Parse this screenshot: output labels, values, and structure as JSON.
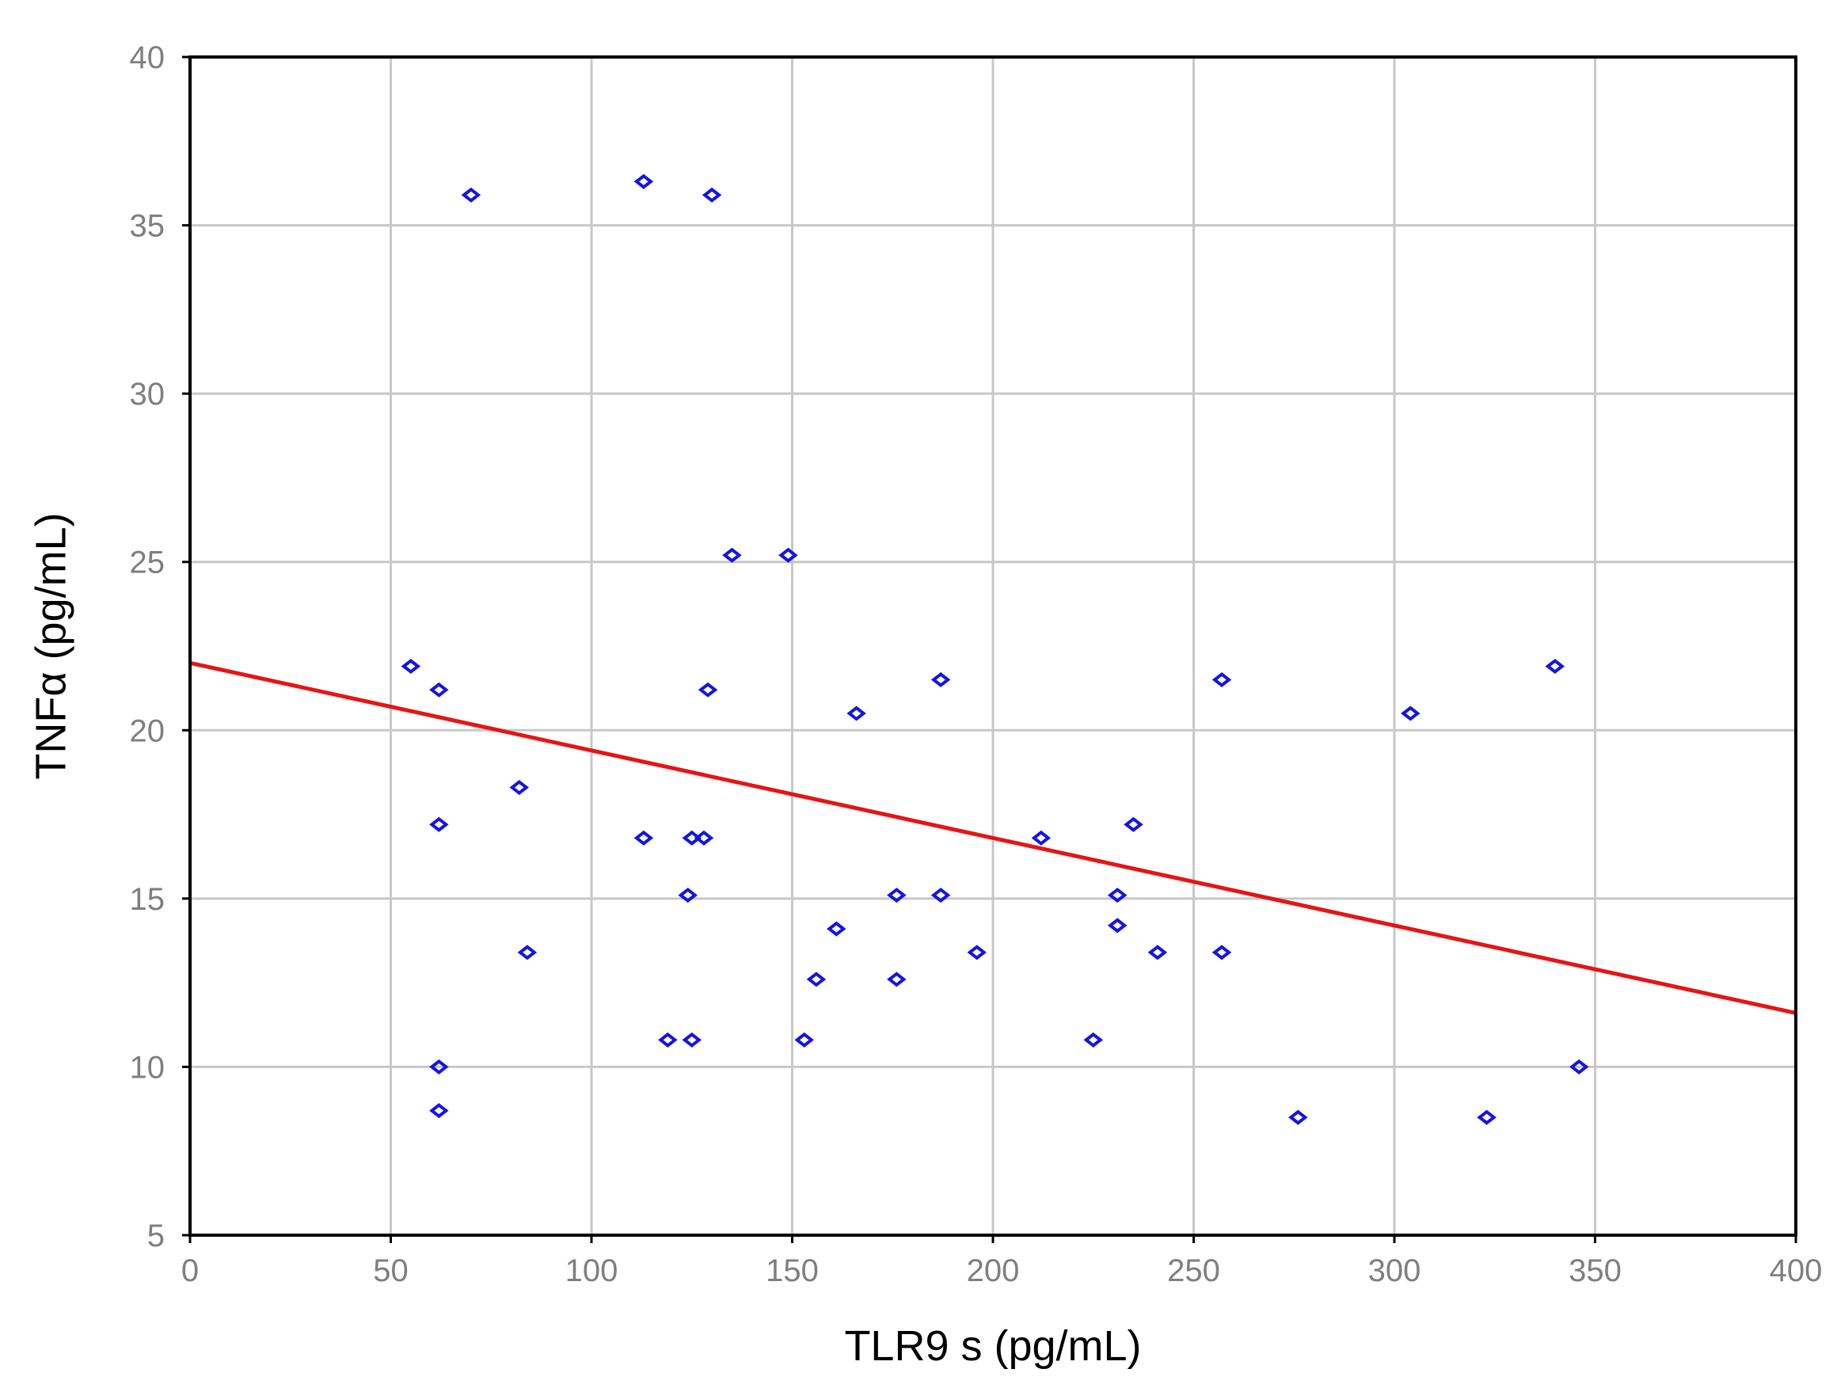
{
  "chart_data": {
    "type": "scatter",
    "title": "",
    "xlabel": "TLR9 s (pg/mL)",
    "ylabel": "TNFα (pg/mL)",
    "xlim": [
      0,
      400
    ],
    "ylim": [
      5,
      40
    ],
    "x_ticks": [
      0,
      50,
      100,
      150,
      200,
      250,
      300,
      350,
      400
    ],
    "y_ticks": [
      5,
      10,
      15,
      20,
      25,
      30,
      35,
      40
    ],
    "grid": true,
    "colors": {
      "points": "#1414e6",
      "trendline": "#e81414",
      "grid": "#c8c8c8",
      "frame": "#000000",
      "tick_labels": "#7f7f7f"
    },
    "series": [
      {
        "marker": "diamond-open",
        "points": [
          [
            70,
            35.9
          ],
          [
            113,
            36.3
          ],
          [
            130,
            35.9
          ],
          [
            135,
            25.2
          ],
          [
            149,
            25.2
          ],
          [
            55,
            21.9
          ],
          [
            62,
            21.2
          ],
          [
            129,
            21.2
          ],
          [
            187,
            21.5
          ],
          [
            166,
            20.5
          ],
          [
            257,
            21.5
          ],
          [
            304,
            20.5
          ],
          [
            340,
            21.9
          ],
          [
            82,
            18.3
          ],
          [
            62,
            17.2
          ],
          [
            113,
            16.8
          ],
          [
            125,
            16.8
          ],
          [
            128,
            16.8
          ],
          [
            212,
            16.8
          ],
          [
            235,
            17.2
          ],
          [
            124,
            15.1
          ],
          [
            176,
            15.1
          ],
          [
            187,
            15.1
          ],
          [
            231,
            15.1
          ],
          [
            161,
            14.1
          ],
          [
            231,
            14.2
          ],
          [
            84,
            13.4
          ],
          [
            196,
            13.4
          ],
          [
            241,
            13.4
          ],
          [
            257,
            13.4
          ],
          [
            156,
            12.6
          ],
          [
            176,
            12.6
          ],
          [
            119,
            10.8
          ],
          [
            125,
            10.8
          ],
          [
            153,
            10.8
          ],
          [
            225,
            10.8
          ],
          [
            62,
            10.0
          ],
          [
            346,
            10.0
          ],
          [
            62,
            8.7
          ],
          [
            276,
            8.5
          ],
          [
            323,
            8.5
          ]
        ]
      }
    ],
    "trendline": {
      "x": [
        0,
        400
      ],
      "y": [
        22.0,
        11.6
      ]
    }
  }
}
